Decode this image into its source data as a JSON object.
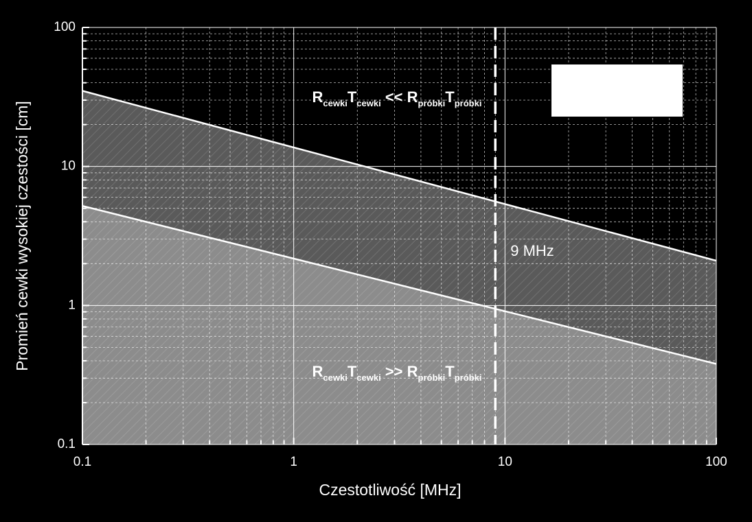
{
  "chart_data": {
    "type": "line",
    "x_label": "Czestotliwość [MHz]",
    "y_label": "Promień cewki wysokiej czestości [cm]",
    "xscale": "log",
    "yscale": "log",
    "xlim": [
      0.1,
      100
    ],
    "ylim": [
      0.1,
      100
    ],
    "xticks": [
      0.1,
      1,
      10,
      100
    ],
    "yticks": [
      0.1,
      1,
      10,
      100
    ],
    "grid": true,
    "series": [
      {
        "color": "#ffffff",
        "fill": "#5a5a5a",
        "x": [
          0.1,
          100
        ],
        "values": [
          35,
          2.1
        ]
      },
      {
        "color": "#ffffff",
        "fill": "#8c8c8c",
        "x": [
          0.1,
          100
        ],
        "values": [
          5.2,
          0.38
        ]
      }
    ],
    "vline": {
      "x": 9,
      "label": "9 MHz"
    },
    "region_labels": [
      [
        "R",
        "cewki",
        "T",
        "cewki",
        " << R",
        "próbki",
        "T",
        "próbki"
      ],
      [
        "R",
        "cewki",
        "T",
        "cewki",
        " >> R",
        "próbki",
        "T",
        "próbki"
      ]
    ]
  }
}
